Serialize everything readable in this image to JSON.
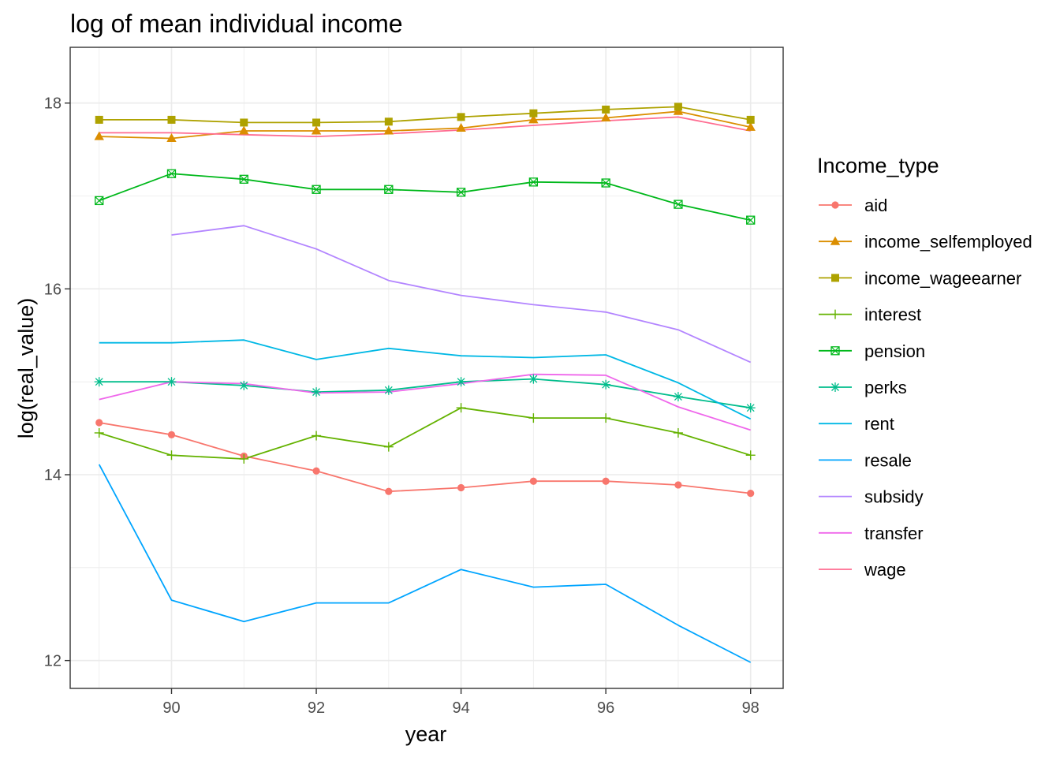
{
  "chart_data": {
    "type": "line",
    "title": "log of mean individual income",
    "xlabel": "year",
    "ylabel": "log(real_value)",
    "xlim": [
      88.6,
      98.45
    ],
    "ylim": [
      11.7,
      18.6
    ],
    "x_ticks": [
      90,
      92,
      94,
      96,
      98
    ],
    "y_ticks": [
      12,
      14,
      16,
      18
    ],
    "x_tick_labels": [
      "90",
      "92",
      "94",
      "96",
      "98"
    ],
    "y_tick_labels": [
      "12",
      "14",
      "16",
      "18"
    ],
    "grid": true,
    "legend": {
      "title": "Income_type",
      "position": "right"
    },
    "x": [
      89,
      90,
      91,
      92,
      93,
      94,
      95,
      96,
      97,
      98
    ],
    "series": [
      {
        "name": "aid",
        "color": "#F8766D",
        "marker": "circle",
        "values": [
          14.56,
          14.43,
          14.2,
          14.04,
          13.82,
          13.86,
          13.93,
          13.93,
          13.89,
          13.8
        ]
      },
      {
        "name": "income_selfemployed",
        "color": "#DB8E00",
        "marker": "triangle",
        "values": [
          17.64,
          17.62,
          17.7,
          17.7,
          17.7,
          17.73,
          17.82,
          17.84,
          17.91,
          17.74
        ]
      },
      {
        "name": "income_wageearner",
        "color": "#AEA200",
        "marker": "square",
        "values": [
          17.82,
          17.82,
          17.79,
          17.79,
          17.8,
          17.85,
          17.89,
          17.93,
          17.96,
          17.82
        ]
      },
      {
        "name": "interest",
        "color": "#64B200",
        "marker": "plus",
        "values": [
          14.45,
          14.21,
          14.17,
          14.42,
          14.3,
          14.72,
          14.61,
          14.61,
          14.45,
          14.21
        ]
      },
      {
        "name": "pension",
        "color": "#00B81B",
        "marker": "square-x",
        "values": [
          16.95,
          17.24,
          17.18,
          17.07,
          17.07,
          17.04,
          17.15,
          17.14,
          16.91,
          16.74
        ]
      },
      {
        "name": "perks",
        "color": "#00BD8C",
        "marker": "asterisk",
        "values": [
          15.0,
          15.0,
          14.96,
          14.89,
          14.91,
          15.0,
          15.03,
          14.97,
          14.84,
          14.72
        ]
      },
      {
        "name": "rent",
        "color": "#00B8E5",
        "marker": "none",
        "values": [
          15.42,
          15.42,
          15.45,
          15.24,
          15.36,
          15.28,
          15.26,
          15.29,
          14.99,
          14.6
        ]
      },
      {
        "name": "resale",
        "color": "#00A5FF",
        "marker": "none",
        "values": [
          14.11,
          12.65,
          12.42,
          12.62,
          12.62,
          12.98,
          12.79,
          12.82,
          12.38,
          11.98
        ]
      },
      {
        "name": "subsidy",
        "color": "#B385FF",
        "marker": "none",
        "values": [
          null,
          16.58,
          16.68,
          16.43,
          16.09,
          15.93,
          15.83,
          15.75,
          15.56,
          15.21
        ]
      },
      {
        "name": "transfer",
        "color": "#EF67EB",
        "marker": "none",
        "values": [
          14.81,
          15.0,
          14.98,
          14.88,
          14.89,
          14.98,
          15.08,
          15.07,
          14.73,
          14.48
        ]
      },
      {
        "name": "wage",
        "color": "#FF6C91",
        "marker": "none",
        "values": [
          17.68,
          17.68,
          17.66,
          17.64,
          17.67,
          17.71,
          17.76,
          17.81,
          17.85,
          17.7
        ]
      }
    ]
  }
}
